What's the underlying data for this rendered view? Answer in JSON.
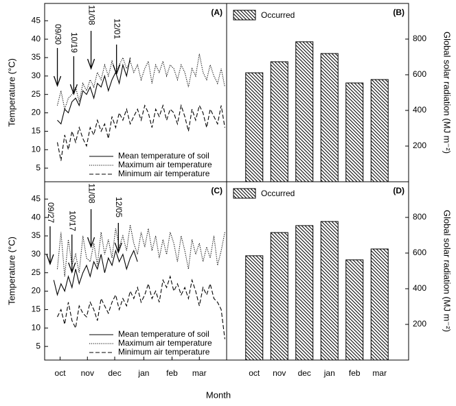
{
  "chart_data": [
    {
      "type": "line",
      "panel_label": "(A)",
      "y_label": "Temperature (°C)",
      "xlim": [
        0,
        200
      ],
      "ylim": [
        1.3,
        49.7
      ],
      "yticks": [
        5,
        10,
        15,
        20,
        25,
        30,
        35,
        40,
        45
      ],
      "annotations": [
        {
          "text": "09/30",
          "x": 14
        },
        {
          "text": "10/19",
          "x": 32
        },
        {
          "text": "11/08",
          "x": 51
        },
        {
          "text": "12/01",
          "x": 79
        }
      ],
      "series": [
        {
          "name": "Mean temperature of soil",
          "color": "#000000",
          "style": "solid",
          "x": [
            14,
            18,
            22,
            26,
            30,
            34,
            38,
            42,
            46,
            50,
            54,
            58,
            62,
            66,
            70,
            74,
            78,
            82,
            86,
            90,
            94
          ],
          "values": [
            18,
            17,
            21,
            20,
            23,
            24,
            22,
            26,
            25,
            27,
            24,
            28,
            27,
            30,
            26,
            29,
            31,
            28,
            33,
            30,
            35
          ]
        },
        {
          "name": "Maximum air temperature",
          "color": "#000000",
          "style": "dotted",
          "x": [
            14,
            18,
            22,
            26,
            30,
            34,
            38,
            42,
            46,
            50,
            54,
            58,
            62,
            66,
            70,
            74,
            78,
            82,
            86,
            90,
            94,
            98,
            102,
            106,
            110,
            114,
            118,
            122,
            126,
            130,
            134,
            138,
            142,
            146,
            150,
            154,
            158,
            162,
            166,
            170,
            174,
            178,
            182,
            186,
            190,
            194,
            198
          ],
          "values": [
            22,
            26,
            21,
            24,
            25,
            27,
            23,
            28,
            26,
            29,
            27,
            31,
            29,
            33,
            30,
            34,
            31,
            33,
            35,
            32,
            34,
            31,
            33,
            29,
            32,
            34,
            28,
            33,
            31,
            34,
            30,
            33,
            32,
            29,
            33,
            31,
            27,
            32,
            30,
            36,
            31,
            29,
            33,
            30,
            28,
            32,
            27
          ]
        },
        {
          "name": "Minimum air temperature",
          "color": "#000000",
          "style": "dashed",
          "x": [
            14,
            18,
            22,
            26,
            30,
            34,
            38,
            42,
            46,
            50,
            54,
            58,
            62,
            66,
            70,
            74,
            78,
            82,
            86,
            90,
            94,
            98,
            102,
            106,
            110,
            114,
            118,
            122,
            126,
            130,
            134,
            138,
            142,
            146,
            150,
            154,
            158,
            162,
            166,
            170,
            174,
            178,
            182,
            186,
            190,
            194,
            198
          ],
          "values": [
            12,
            7,
            14,
            10,
            15,
            12,
            16,
            13,
            11,
            16,
            14,
            18,
            15,
            17,
            13,
            19,
            16,
            20,
            18,
            21,
            17,
            19,
            21,
            18,
            22,
            20,
            16,
            21,
            19,
            22,
            18,
            21,
            20,
            17,
            22,
            19,
            15,
            21,
            18,
            22,
            20,
            16,
            21,
            19,
            17,
            22,
            16
          ]
        }
      ]
    },
    {
      "type": "bar",
      "panel_label": "(B)",
      "y_label": "Global solar radiation (MJ m⁻²)",
      "legend": "Occurred",
      "categories": [
        null,
        null,
        null,
        null,
        null,
        null
      ],
      "values": [
        611,
        673,
        785,
        719,
        554,
        573
      ],
      "ylim": [
        0,
        1000
      ],
      "yticks": [
        200,
        400,
        600,
        800
      ]
    },
    {
      "type": "line",
      "panel_label": "(C)",
      "y_label": "Temperature (°C)",
      "x_label": "Month",
      "xlim": [
        0,
        200
      ],
      "ylim": [
        1.3,
        49.7
      ],
      "yticks": [
        5,
        10,
        15,
        20,
        25,
        30,
        35,
        40,
        45
      ],
      "xticks": [
        {
          "value": 17,
          "label": "oct"
        },
        {
          "value": 47,
          "label": "nov"
        },
        {
          "value": 77,
          "label": "dec"
        },
        {
          "value": 109,
          "label": "jan"
        },
        {
          "value": 140,
          "label": "feb"
        },
        {
          "value": 170,
          "label": "mar"
        }
      ],
      "annotations": [
        {
          "text": "09/27",
          "x": 6
        },
        {
          "text": "10/17",
          "x": 30
        },
        {
          "text": "11/08",
          "x": 51
        },
        {
          "text": "12/05",
          "x": 81
        }
      ],
      "series": [
        {
          "name": "Mean temperature of soil",
          "color": "#000000",
          "style": "solid",
          "x": [
            10,
            14,
            18,
            22,
            26,
            30,
            34,
            38,
            42,
            46,
            50,
            54,
            58,
            62,
            66,
            70,
            74,
            78,
            82,
            86,
            90,
            94,
            98,
            102
          ],
          "values": [
            23,
            19,
            22,
            20,
            24,
            21,
            26,
            22,
            25,
            27,
            24,
            28,
            26,
            30,
            25,
            29,
            27,
            31,
            28,
            30,
            26,
            29,
            31,
            28
          ]
        },
        {
          "name": "Maximum air temperature",
          "color": "#000000",
          "style": "dotted",
          "x": [
            14,
            18,
            22,
            26,
            30,
            34,
            38,
            42,
            46,
            50,
            54,
            58,
            62,
            66,
            70,
            74,
            78,
            82,
            86,
            90,
            94,
            98,
            102,
            106,
            110,
            114,
            118,
            122,
            126,
            130,
            134,
            138,
            142,
            146,
            150,
            154,
            158,
            162,
            166,
            170,
            174,
            178,
            182,
            186,
            190,
            194,
            198
          ],
          "values": [
            26,
            36,
            24,
            34,
            27,
            30,
            25,
            35,
            29,
            28,
            33,
            27,
            36,
            30,
            34,
            29,
            37,
            32,
            35,
            31,
            38,
            33,
            30,
            36,
            32,
            37,
            31,
            35,
            29,
            34,
            30,
            36,
            33,
            28,
            35,
            31,
            26,
            34,
            30,
            33,
            28,
            32,
            29,
            35,
            27,
            31,
            36
          ]
        },
        {
          "name": "Minimum air temperature",
          "color": "#000000",
          "style": "dashed",
          "x": [
            14,
            18,
            22,
            26,
            30,
            34,
            38,
            42,
            46,
            50,
            54,
            58,
            62,
            66,
            70,
            74,
            78,
            82,
            86,
            90,
            94,
            98,
            102,
            106,
            110,
            114,
            118,
            122,
            126,
            130,
            134,
            138,
            142,
            146,
            150,
            154,
            158,
            162,
            166,
            170,
            174,
            178,
            182,
            186,
            190,
            194,
            198
          ],
          "values": [
            13,
            15,
            11,
            17,
            12,
            10,
            16,
            14,
            13,
            17,
            15,
            12,
            18,
            16,
            14,
            17,
            19,
            15,
            18,
            16,
            20,
            18,
            21,
            17,
            19,
            22,
            18,
            20,
            17,
            23,
            21,
            24,
            20,
            22,
            19,
            21,
            18,
            23,
            20,
            16,
            21,
            19,
            22,
            18,
            17,
            15,
            7
          ]
        }
      ]
    },
    {
      "type": "bar",
      "panel_label": "(D)",
      "y_label": "Global solar radiation (MJ m⁻²)",
      "legend": "Occurred",
      "categories": [
        "oct",
        "nov",
        "dec",
        "jan",
        "feb",
        "mar"
      ],
      "values": [
        585,
        715,
        754,
        777,
        562,
        623
      ],
      "ylim": [
        0,
        1000
      ],
      "yticks": [
        200,
        400,
        600,
        800
      ]
    }
  ]
}
